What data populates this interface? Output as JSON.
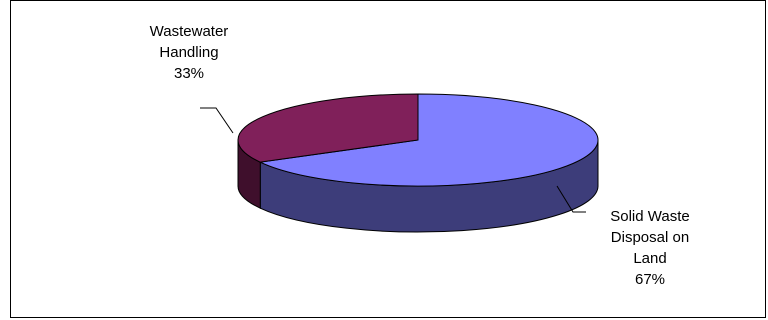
{
  "chart_data": {
    "type": "pie",
    "title": "",
    "style": "3d-exploded-ellipse",
    "slices": [
      {
        "label_lines": [
          "Solid Waste",
          "Disposal on",
          "Land",
          "67%"
        ],
        "value": 67,
        "top_color": "#8080FF",
        "side_color": "#3D3D7A",
        "label_position": "bottom-right"
      },
      {
        "label_lines": [
          "Wastewater",
          "Handling",
          "33%"
        ],
        "value": 33,
        "top_color": "#80205A",
        "side_color": "#3F0F2C",
        "label_position": "top-left"
      }
    ]
  },
  "colors": {
    "outline": "#000000",
    "background": "#ffffff"
  }
}
